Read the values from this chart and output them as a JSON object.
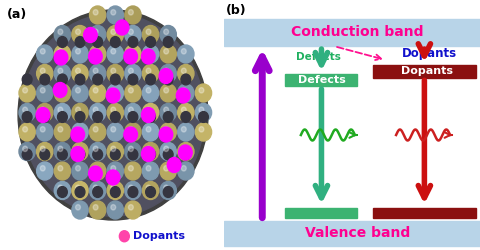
{
  "bg_color": "#ffffff",
  "cb_color": "#b8d4e8",
  "vb_color": "#b8d4e8",
  "conduction_band_label": "Conduction band",
  "valence_band_label": "Valence band",
  "label_a": "(a)",
  "label_b": "(b)",
  "defects_box_color": "#3cb371",
  "dopants_box_color": "#8b1010",
  "defects_label": "Defects",
  "dopants_label_box": "Dopants",
  "dopants_label_blue": "Dopants",
  "defects_label_color": "#20b060",
  "dopants_label_color": "#1010cc",
  "band_label_color": "#ff0090",
  "purple_arrow_color": "#9900cc",
  "teal_arrow_color": "#30b080",
  "red_arrow_color": "#cc1010",
  "dopants_legend_color": "#ff00ff",
  "dopants_legend_label": "Dopants",
  "wave_green_color": "#20aa20",
  "wave_red_color": "#cc2020",
  "dashed_arrow_color": "#ff1090",
  "atom_gold": "#c8b86a",
  "atom_blue": "#8aa8c0",
  "atom_dark": "#606070",
  "atom_magenta": "#ff00ff"
}
